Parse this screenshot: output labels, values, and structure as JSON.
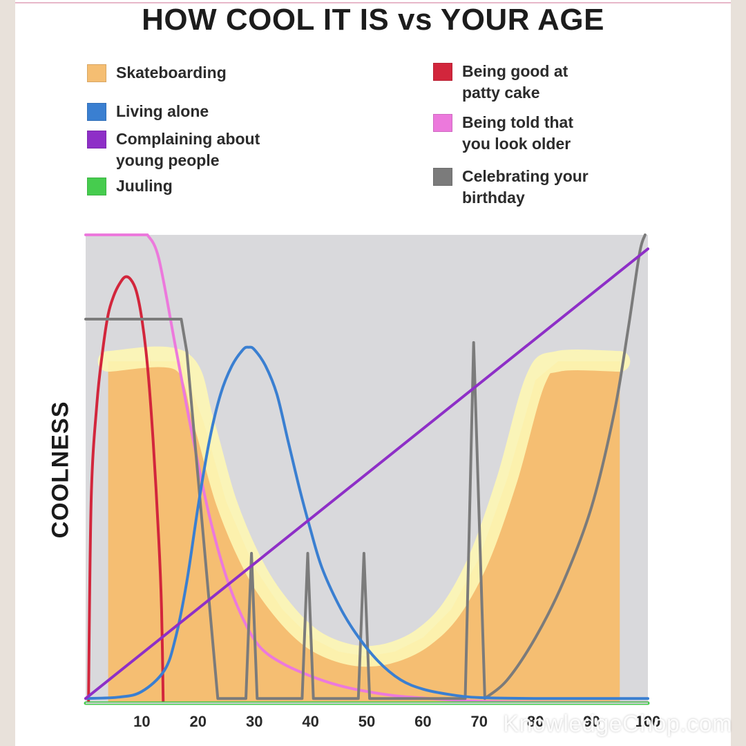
{
  "title": "HOW COOL IT IS vs YOUR AGE",
  "legend": {
    "left": [
      {
        "label": "Skateboarding",
        "color": "#f5be72"
      },
      {
        "label": "Living alone",
        "color": "#3a7fd1"
      },
      {
        "label": "Complaining about young people",
        "color": "#8e2fc7"
      },
      {
        "label": "Juuling",
        "color": "#46cc4e"
      }
    ],
    "right": [
      {
        "label": "Being good at patty cake",
        "color": "#d2263c"
      },
      {
        "label": "Being told that you look older",
        "color": "#ec79dc"
      },
      {
        "label": "Celebrating your birthday",
        "color": "#7b7b7b"
      }
    ]
  },
  "watermark": "KnowledgeChop.com",
  "chart_data": {
    "type": "line",
    "title": "HOW COOL IT IS vs YOUR AGE",
    "xlabel": "",
    "ylabel": "COOLNESS",
    "xlim": [
      0,
      100
    ],
    "ylim": [
      0,
      100
    ],
    "x_ticks": [
      "10",
      "20",
      "30",
      "40",
      "50",
      "60",
      "70",
      "80",
      "90",
      "100"
    ],
    "grid": false,
    "legend_position": "top",
    "series": [
      {
        "name": "Skateboarding",
        "type": "area",
        "color": "#f5be72",
        "highlight": "#fdf6b4",
        "points": [
          [
            4,
            0
          ],
          [
            4,
            73
          ],
          [
            17,
            73
          ],
          [
            21,
            60
          ],
          [
            25,
            43
          ],
          [
            30,
            29
          ],
          [
            35,
            20
          ],
          [
            40,
            14
          ],
          [
            45,
            11
          ],
          [
            50,
            10
          ],
          [
            55,
            11
          ],
          [
            60,
            14
          ],
          [
            65,
            20
          ],
          [
            70,
            31
          ],
          [
            75,
            48
          ],
          [
            80,
            69
          ],
          [
            84,
            73
          ],
          [
            95,
            73
          ],
          [
            95,
            0
          ]
        ]
      },
      {
        "name": "Being good at patty cake",
        "color": "#d2263c",
        "points": [
          [
            0.5,
            0
          ],
          [
            1,
            44
          ],
          [
            2,
            64
          ],
          [
            3,
            75
          ],
          [
            4,
            83
          ],
          [
            5,
            87
          ],
          [
            6,
            89.5
          ],
          [
            7,
            91
          ],
          [
            8,
            90.5
          ],
          [
            9,
            88
          ],
          [
            10,
            82
          ],
          [
            11,
            72
          ],
          [
            12,
            56
          ],
          [
            13,
            35
          ],
          [
            13.5,
            20
          ],
          [
            13.8,
            0
          ]
        ]
      },
      {
        "name": "Being told that you look older",
        "color": "#ec79dc",
        "points": [
          [
            0,
            100
          ],
          [
            11,
            100
          ],
          [
            13,
            95
          ],
          [
            16,
            76
          ],
          [
            19,
            57
          ],
          [
            22,
            40
          ],
          [
            25,
            27
          ],
          [
            28,
            18
          ],
          [
            31,
            12
          ],
          [
            35,
            8.5
          ],
          [
            40,
            5.8
          ],
          [
            45,
            3.8
          ],
          [
            50,
            2.5
          ],
          [
            55,
            1.6
          ],
          [
            60,
            1.1
          ],
          [
            65,
            0.7
          ],
          [
            70,
            0.4
          ],
          [
            80,
            0.2
          ],
          [
            100,
            0.1
          ]
        ]
      },
      {
        "name": "Celebrating your birthday",
        "color": "#7b7b7b",
        "points": [
          [
            0,
            82
          ],
          [
            17,
            82
          ],
          [
            18,
            75
          ],
          [
            23.5,
            1
          ],
          [
            28.5,
            1
          ],
          [
            29.5,
            32
          ],
          [
            30.5,
            1
          ],
          [
            38.5,
            1
          ],
          [
            39.5,
            32
          ],
          [
            40.5,
            1
          ],
          [
            48.5,
            1
          ],
          [
            49.5,
            32
          ],
          [
            50.5,
            1
          ],
          [
            67.5,
            1
          ],
          [
            69,
            77
          ],
          [
            71,
            1
          ],
          [
            75,
            5
          ],
          [
            80,
            14
          ],
          [
            85,
            26
          ],
          [
            90,
            42
          ],
          [
            94,
            62
          ],
          [
            96.5,
            80
          ],
          [
            98.5,
            96
          ],
          [
            99.5,
            100
          ]
        ]
      },
      {
        "name": "Living alone",
        "color": "#3a7fd1",
        "points": [
          [
            0,
            1
          ],
          [
            6,
            1.3
          ],
          [
            10,
            2.5
          ],
          [
            14,
            7
          ],
          [
            16,
            14
          ],
          [
            18,
            26
          ],
          [
            20,
            42
          ],
          [
            22,
            56
          ],
          [
            24,
            66
          ],
          [
            26,
            72
          ],
          [
            28,
            75.5
          ],
          [
            29,
            76
          ],
          [
            30,
            75.5
          ],
          [
            32,
            72
          ],
          [
            34,
            66
          ],
          [
            36,
            56
          ],
          [
            38,
            46
          ],
          [
            40,
            37
          ],
          [
            42,
            29
          ],
          [
            45,
            21
          ],
          [
            48,
            15
          ],
          [
            52,
            9
          ],
          [
            56,
            5
          ],
          [
            60,
            3
          ],
          [
            65,
            1.8
          ],
          [
            70,
            1.2
          ],
          [
            80,
            1
          ],
          [
            100,
            1
          ]
        ]
      },
      {
        "name": "Complaining about young people",
        "color": "#8e2fc7",
        "points": [
          [
            0,
            1
          ],
          [
            100,
            97
          ]
        ]
      },
      {
        "name": "Juuling",
        "color": "#46cc4e",
        "points": [
          [
            0,
            0
          ],
          [
            100,
            0
          ]
        ]
      }
    ]
  }
}
